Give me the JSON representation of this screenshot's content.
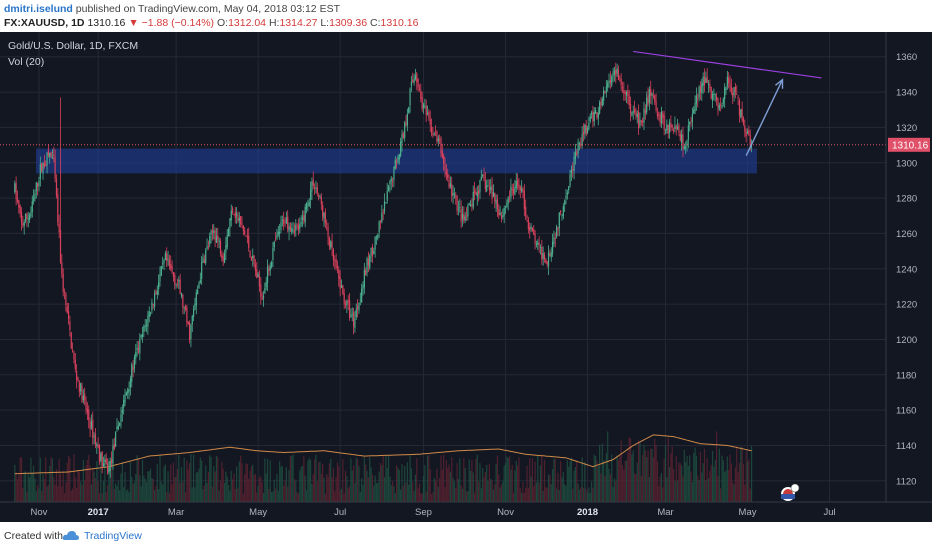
{
  "header": {
    "author": "dmitri.iselund",
    "published": "published on TradingView.com, May 04, 2018 03:12 EST",
    "symbol": "FX:XAUUSD, 1D",
    "last": "1310.16",
    "change_arrow": "▼",
    "change": "−1.88 (−0.14%)",
    "o_label": "O:",
    "o": "1312.04",
    "h_label": "H:",
    "h": "1314.27",
    "l_label": "L:",
    "l": "1309.36",
    "c_label": "C:",
    "c": "1310.16"
  },
  "legend": {
    "series": "Gold/U.S. Dollar, 1D, FXCM",
    "volume": "Vol (20)"
  },
  "footer": {
    "created_with": "Created with",
    "brand": "TradingView"
  },
  "colors": {
    "background": "#131722",
    "grid": "#242935",
    "up": "#4caf8f",
    "down": "#d9415c",
    "zone": "#1f3f9a",
    "trendline": "#9b40e0",
    "arrow": "#7f9fd6",
    "vol_ma": "#d08a48",
    "price_label": "#e05068"
  },
  "chart_data": {
    "type": "candlestick",
    "price_label": "1310.16",
    "y_ticks": [
      1120,
      1140,
      1160,
      1180,
      1200,
      1220,
      1240,
      1260,
      1280,
      1300,
      1320,
      1340,
      1360
    ],
    "ylim": [
      1108,
      1374
    ],
    "x_ticks": [
      {
        "label": "Nov",
        "t": 18
      },
      {
        "label": "2017",
        "t": 62
      },
      {
        "label": "Mar",
        "t": 120
      },
      {
        "label": "May",
        "t": 181
      },
      {
        "label": "Jul",
        "t": 242
      },
      {
        "label": "Sep",
        "t": 304
      },
      {
        "label": "Nov",
        "t": 365
      },
      {
        "label": "2018",
        "t": 426
      },
      {
        "label": "Mar",
        "t": 484
      },
      {
        "label": "May",
        "t": 545
      },
      {
        "label": "Jul",
        "t": 606
      }
    ],
    "x_bold": [
      "2017",
      "2018"
    ],
    "tlim": [
      -11,
      648
    ],
    "path_anchors": [
      [
        0,
        1285
      ],
      [
        5,
        1265
      ],
      [
        12,
        1272
      ],
      [
        19,
        1296
      ],
      [
        26,
        1305
      ],
      [
        29,
        1300
      ],
      [
        35,
        1235
      ],
      [
        45,
        1182
      ],
      [
        55,
        1155
      ],
      [
        65,
        1130
      ],
      [
        70,
        1126
      ],
      [
        78,
        1155
      ],
      [
        88,
        1185
      ],
      [
        100,
        1215
      ],
      [
        112,
        1245
      ],
      [
        122,
        1230
      ],
      [
        130,
        1203
      ],
      [
        140,
        1245
      ],
      [
        148,
        1262
      ],
      [
        155,
        1248
      ],
      [
        162,
        1275
      ],
      [
        172,
        1258
      ],
      [
        184,
        1225
      ],
      [
        192,
        1250
      ],
      [
        200,
        1268
      ],
      [
        212,
        1262
      ],
      [
        222,
        1290
      ],
      [
        228,
        1276
      ],
      [
        236,
        1248
      ],
      [
        244,
        1225
      ],
      [
        252,
        1210
      ],
      [
        262,
        1242
      ],
      [
        270,
        1260
      ],
      [
        280,
        1290
      ],
      [
        290,
        1320
      ],
      [
        294,
        1340
      ],
      [
        298,
        1352
      ],
      [
        302,
        1336
      ],
      [
        308,
        1322
      ],
      [
        316,
        1310
      ],
      [
        322,
        1290
      ],
      [
        328,
        1278
      ],
      [
        334,
        1266
      ],
      [
        340,
        1278
      ],
      [
        348,
        1290
      ],
      [
        356,
        1282
      ],
      [
        362,
        1270
      ],
      [
        368,
        1282
      ],
      [
        376,
        1288
      ],
      [
        382,
        1265
      ],
      [
        390,
        1250
      ],
      [
        396,
        1246
      ],
      [
        404,
        1265
      ],
      [
        412,
        1290
      ],
      [
        418,
        1306
      ],
      [
        424,
        1318
      ],
      [
        430,
        1326
      ],
      [
        436,
        1332
      ],
      [
        442,
        1348
      ],
      [
        448,
        1352
      ],
      [
        454,
        1340
      ],
      [
        460,
        1326
      ],
      [
        466,
        1322
      ],
      [
        472,
        1340
      ],
      [
        478,
        1330
      ],
      [
        484,
        1320
      ],
      [
        492,
        1322
      ],
      [
        498,
        1310
      ],
      [
        505,
        1330
      ],
      [
        512,
        1346
      ],
      [
        518,
        1340
      ],
      [
        524,
        1330
      ],
      [
        530,
        1345
      ],
      [
        536,
        1338
      ],
      [
        542,
        1322
      ],
      [
        548,
        1310
      ]
    ],
    "support_zone": {
      "from_t": -11,
      "to_t": 552,
      "low": 1294,
      "high": 1308
    },
    "trendline": [
      {
        "t": 460,
        "price": 1363
      },
      {
        "t": 600,
        "price": 1348
      }
    ],
    "arrow": [
      {
        "t": 544,
        "price": 1304
      },
      {
        "t": 571,
        "price": 1347
      }
    ],
    "volume_ma_anchors": [
      [
        0,
        1124
      ],
      [
        40,
        1125
      ],
      [
        70,
        1128
      ],
      [
        100,
        1134
      ],
      [
        130,
        1136
      ],
      [
        160,
        1139
      ],
      [
        180,
        1137
      ],
      [
        200,
        1136
      ],
      [
        230,
        1137
      ],
      [
        260,
        1134
      ],
      [
        300,
        1135
      ],
      [
        330,
        1137
      ],
      [
        360,
        1138
      ],
      [
        380,
        1135
      ],
      [
        410,
        1133
      ],
      [
        430,
        1128
      ],
      [
        445,
        1132
      ],
      [
        460,
        1140
      ],
      [
        475,
        1146
      ],
      [
        490,
        1145
      ],
      [
        510,
        1141
      ],
      [
        530,
        1140
      ],
      [
        548,
        1137
      ]
    ]
  }
}
